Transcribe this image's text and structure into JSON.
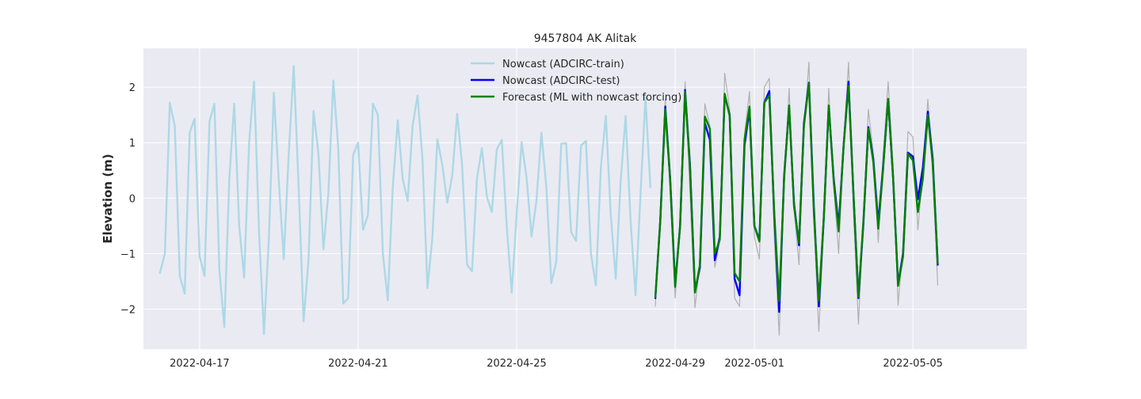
{
  "chart_data": {
    "type": "line",
    "title": "9457804 AK Alitak",
    "xlabel": "",
    "ylabel": "Elevation (m)",
    "x_start": "2022-04-16T00:00",
    "x_step_hours": 3,
    "xlim": [
      "2022-04-15T14:00",
      "2022-05-07T21:00"
    ],
    "ylim": [
      -2.72,
      2.7
    ],
    "x_ticks": [
      "2022-04-17",
      "2022-04-21",
      "2022-04-25",
      "2022-04-29",
      "2022-05-01",
      "2022-05-05"
    ],
    "y_ticks": [
      -2,
      -1,
      0,
      1,
      2
    ],
    "y_tick_labels": [
      "−2",
      "−1",
      "0",
      "1",
      "2"
    ],
    "grid": true,
    "legend_position": "top-center",
    "colors": {
      "plot_background": "#eaeaf2",
      "grid": "#ffffff",
      "observed": "#b0b0b0",
      "nowcast_train": "#add8e6",
      "nowcast_test": "#0000ff",
      "forecast": "#008000"
    },
    "series": [
      {
        "name": "Nowcast (ADCIRC-train)",
        "color": "#add8e6",
        "start_index": 0,
        "values": [
          -1.35,
          -1.0,
          1.72,
          1.3,
          -1.4,
          -1.72,
          1.18,
          1.43,
          -1.05,
          -1.4,
          1.38,
          1.7,
          -1.3,
          -2.32,
          0.35,
          1.7,
          -0.5,
          -1.43,
          1.0,
          2.1,
          -0.6,
          -2.45,
          -0.7,
          1.9,
          0.3,
          -1.1,
          0.8,
          2.38,
          0.2,
          -2.22,
          -1.1,
          1.57,
          0.8,
          -0.92,
          0.08,
          2.12,
          0.9,
          -1.9,
          -1.8,
          0.78,
          1.0,
          -0.57,
          -0.3,
          1.7,
          1.5,
          -1.0,
          -1.84,
          0.2,
          1.4,
          0.35,
          -0.05,
          1.3,
          1.85,
          0.7,
          -1.62,
          -0.7,
          1.06,
          0.6,
          -0.08,
          0.4,
          1.52,
          0.6,
          -1.2,
          -1.32,
          0.36,
          0.9,
          0.02,
          -0.25,
          0.88,
          1.05,
          -0.5,
          -1.7,
          -0.3,
          1.01,
          0.38,
          -0.69,
          -0.05,
          1.18,
          0.2,
          -1.53,
          -1.15,
          0.98,
          0.99,
          -0.61,
          -0.77,
          0.95,
          1.03,
          -1.0,
          -1.57,
          0.55,
          1.48,
          -0.3,
          -1.45,
          0.3,
          1.48,
          -0.4,
          -1.75,
          0.05,
          1.82,
          0.2
        ]
      },
      {
        "name": "",
        "role": "observed",
        "color": "#b0b0b0",
        "start_index": 100,
        "values": [
          -1.95,
          -0.25,
          1.78,
          0.1,
          -1.8,
          -0.35,
          2.1,
          0.1,
          -1.97,
          -1.2,
          1.7,
          1.3,
          -1.25,
          -0.8,
          2.25,
          1.6,
          -1.8,
          -1.95,
          1.15,
          1.92,
          -0.7,
          -1.1,
          2.0,
          2.16,
          -0.7,
          -2.47,
          0.3,
          1.98,
          -0.2,
          -1.2,
          1.2,
          2.45,
          -0.4,
          -2.4,
          -0.5,
          1.98,
          0.2,
          -1.0,
          1.0,
          2.45,
          -0.3,
          -2.27,
          -0.35,
          1.6,
          0.8,
          -0.8,
          0.8,
          2.1,
          0.6,
          -1.93,
          -0.85,
          1.2,
          1.1,
          -0.57,
          0.5,
          1.78,
          0.4,
          -1.57
        ]
      },
      {
        "name": "Nowcast (ADCIRC-test)",
        "color": "#0000ff",
        "start_index": 100,
        "values": [
          -1.8,
          -0.4,
          1.65,
          0.35,
          -1.55,
          -0.5,
          1.95,
          0.6,
          -1.68,
          -1.25,
          1.35,
          1.05,
          -1.12,
          -0.7,
          1.85,
          1.5,
          -1.45,
          -1.75,
          0.95,
          1.6,
          -0.5,
          -0.75,
          1.72,
          1.93,
          -0.3,
          -2.05,
          0.4,
          1.63,
          -0.1,
          -0.85,
          1.35,
          2.08,
          -0.15,
          -1.95,
          -0.35,
          1.65,
          0.35,
          -0.5,
          0.95,
          2.1,
          0.05,
          -1.8,
          -0.45,
          1.28,
          0.7,
          -0.45,
          0.6,
          1.77,
          0.35,
          -1.55,
          -1.0,
          0.82,
          0.75,
          -0.02,
          0.55,
          1.56,
          0.7,
          -1.2
        ]
      },
      {
        "name": "Forecast (ML with nowcast forcing)",
        "color": "#008000",
        "start_index": 100,
        "values": [
          -1.78,
          -0.42,
          1.6,
          0.32,
          -1.6,
          -0.5,
          1.92,
          0.55,
          -1.7,
          -1.2,
          1.47,
          1.25,
          -1.0,
          -0.75,
          1.88,
          1.48,
          -1.35,
          -1.5,
          1.05,
          1.65,
          -0.5,
          -0.78,
          1.72,
          1.85,
          -0.25,
          -1.85,
          0.35,
          1.67,
          -0.15,
          -0.8,
          1.3,
          2.07,
          -0.25,
          -1.85,
          -0.35,
          1.67,
          0.3,
          -0.6,
          0.95,
          2.02,
          0.05,
          -1.78,
          -0.4,
          1.25,
          0.65,
          -0.55,
          0.55,
          1.79,
          0.35,
          -1.58,
          -1.05,
          0.8,
          0.68,
          -0.25,
          0.35,
          1.5,
          0.62,
          -1.18
        ]
      }
    ]
  }
}
